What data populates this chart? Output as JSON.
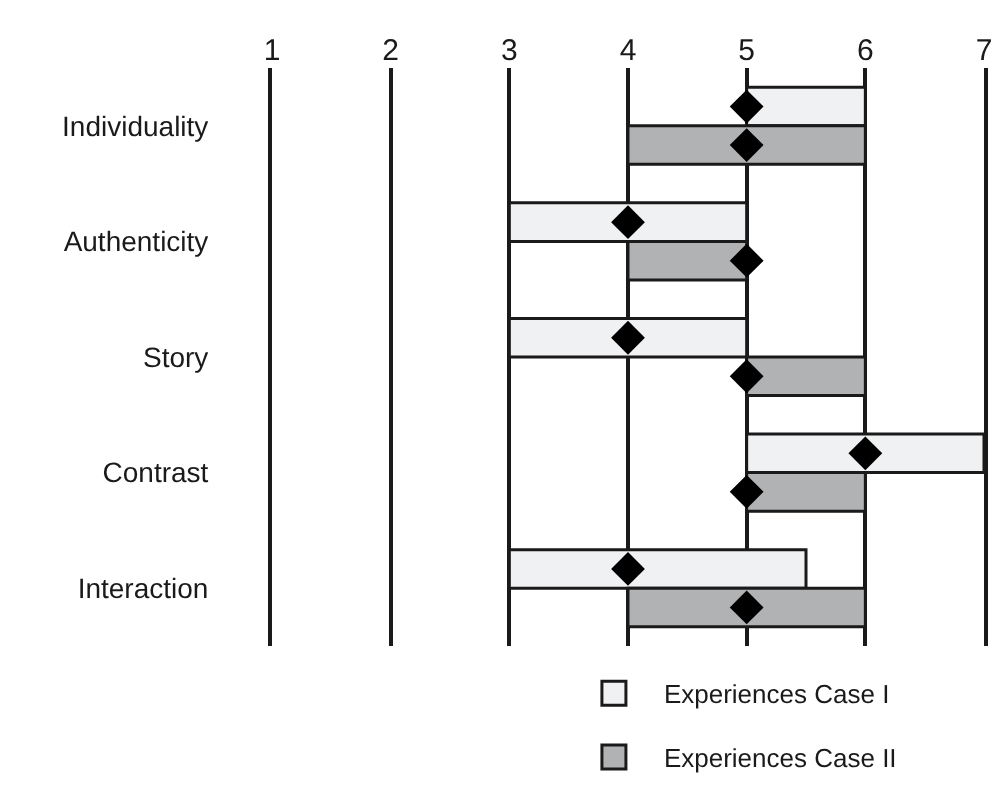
{
  "chart_data": {
    "type": "bar",
    "orientation": "horizontal",
    "categories": [
      "Individuality",
      "Authenticity",
      "Story",
      "Contrast",
      "Interaction"
    ],
    "series": [
      {
        "name": "Experiences Case I",
        "color": "#f0f1f2",
        "base": [
          5,
          3,
          3,
          5,
          3
        ],
        "values": [
          1,
          2,
          2,
          2,
          2.5
        ]
      },
      {
        "name": "Experiences Case II",
        "color": "#b1b2b4",
        "base": [
          4,
          4,
          5,
          5,
          4
        ],
        "values": [
          2,
          1,
          1,
          1,
          2
        ]
      },
      {
        "type": "scatter",
        "color": "#000000",
        "marker": "diamond",
        "values": [
          5,
          4,
          4,
          6,
          4
        ]
      },
      {
        "type": "scatter",
        "color": "#000000",
        "marker": "diamond",
        "values": [
          5,
          5,
          5,
          5,
          5
        ]
      }
    ],
    "xlim": [
      1,
      7
    ],
    "xticks": [
      1,
      2,
      3,
      4,
      5,
      6,
      7
    ],
    "grid": "x",
    "legend": "bottom right"
  }
}
